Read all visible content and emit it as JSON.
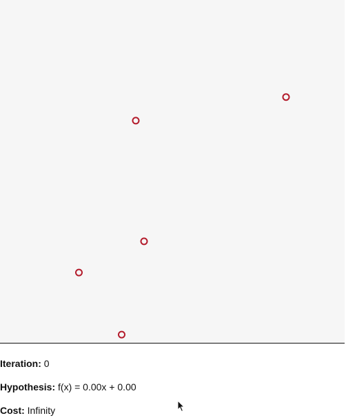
{
  "status": {
    "iteration_label": "Iteration:",
    "iteration_value": "0",
    "hypothesis_label": "Hypothesis:",
    "hypothesis_value": "f(x) = 0.00x + 0.00",
    "cost_label": "Cost:",
    "cost_value": "Infinity"
  },
  "chart_data": {
    "type": "scatter",
    "title": "",
    "xlabel": "",
    "ylabel": "",
    "xlim": [
      0,
      1
    ],
    "ylim": [
      0,
      1
    ],
    "points": [
      {
        "x": 0.83,
        "y": 0.717
      },
      {
        "x": 0.394,
        "y": 0.648
      },
      {
        "x": 0.418,
        "y": 0.296
      },
      {
        "x": 0.229,
        "y": 0.205
      },
      {
        "x": 0.353,
        "y": 0.024
      }
    ],
    "point_color": "#b31b2b",
    "background": "#f6f6f6",
    "grid": false,
    "legend": "none"
  }
}
